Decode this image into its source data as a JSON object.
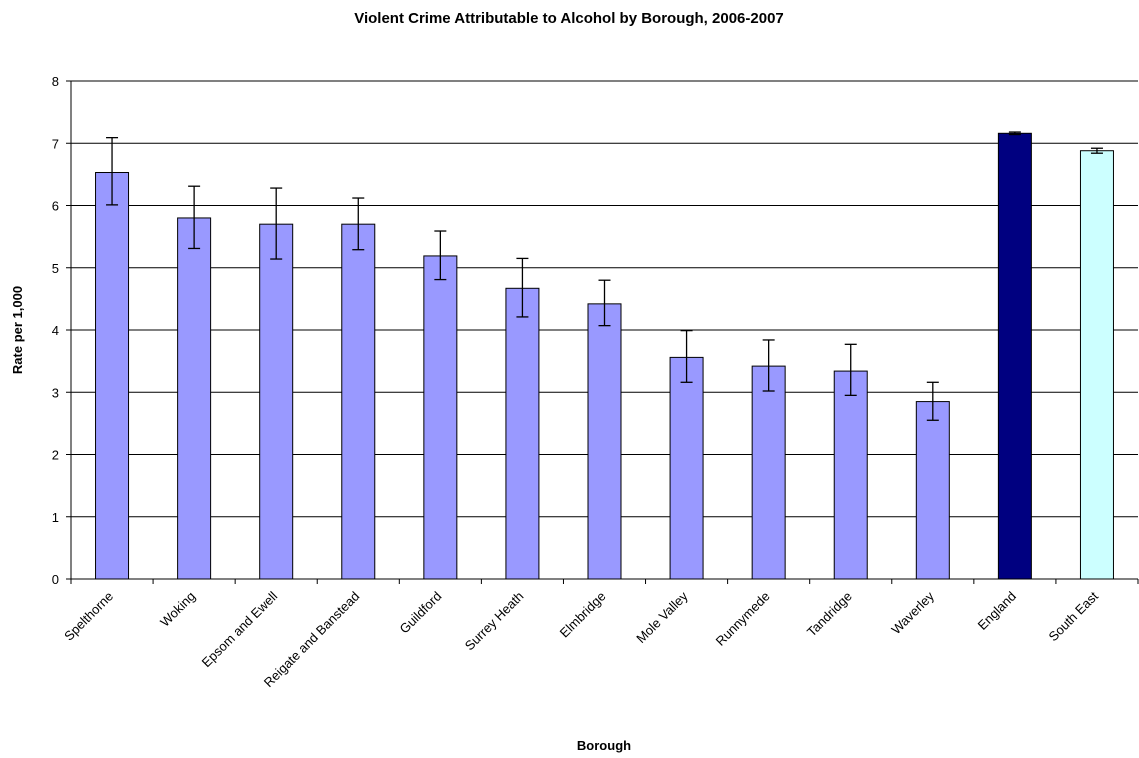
{
  "chart_data": {
    "type": "bar",
    "title": "Violent Crime Attributable to Alcohol by Borough, 2006-2007",
    "xlabel": "Borough",
    "ylabel": "Rate per 1,000",
    "ylim": [
      0,
      8
    ],
    "yticks": [
      0,
      1,
      2,
      3,
      4,
      5,
      6,
      7,
      8
    ],
    "grid": true,
    "legend": "none",
    "categories": [
      "Spelthorne",
      "Woking",
      "Epsom and Ewell",
      "Reigate and Banstead",
      "Guildford",
      "Surrey Heath",
      "Elmbridge",
      "Mole Valley",
      "Runnymede",
      "Tandridge",
      "Waverley",
      "England",
      "South East"
    ],
    "values": [
      6.53,
      5.8,
      5.7,
      5.7,
      5.19,
      4.67,
      4.42,
      3.56,
      3.42,
      3.34,
      2.85,
      7.16,
      6.88
    ],
    "error_lower": [
      6.01,
      5.31,
      5.14,
      5.29,
      4.81,
      4.21,
      4.07,
      3.16,
      3.02,
      2.95,
      2.55,
      7.14,
      6.84
    ],
    "error_upper": [
      7.09,
      6.31,
      6.28,
      6.12,
      5.59,
      5.15,
      4.8,
      3.99,
      3.84,
      3.77,
      3.16,
      7.18,
      6.92
    ],
    "colors": [
      "#9999ff",
      "#9999ff",
      "#9999ff",
      "#9999ff",
      "#9999ff",
      "#9999ff",
      "#9999ff",
      "#9999ff",
      "#9999ff",
      "#9999ff",
      "#9999ff",
      "#000080",
      "#ccffff"
    ]
  }
}
